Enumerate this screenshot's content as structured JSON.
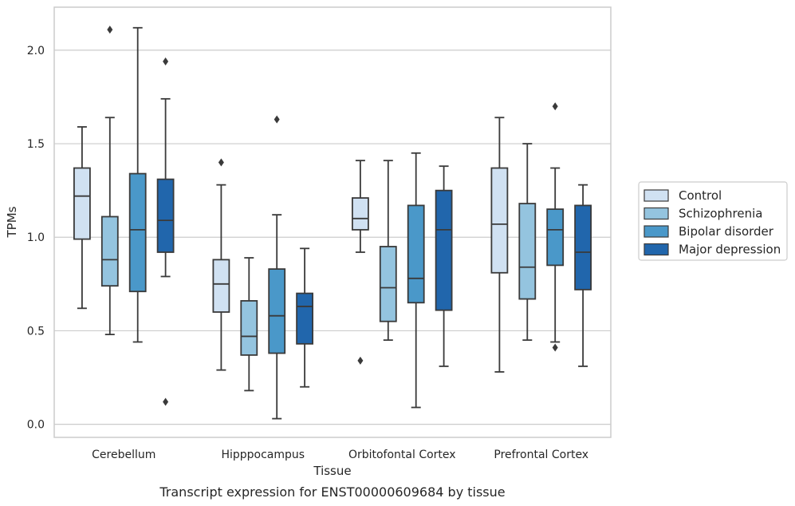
{
  "chart_data": {
    "type": "box",
    "xlabel": "Tissue",
    "ylabel": "TPMs",
    "caption": "Transcript expression for ENST00000609684 by tissue",
    "ylim": [
      -0.07,
      2.23
    ],
    "yticks": [
      "0.0",
      "0.5",
      "1.0",
      "1.5",
      "2.0"
    ],
    "ytick_values": [
      0.0,
      0.5,
      1.0,
      1.5,
      2.0
    ],
    "grid": "horizontal",
    "legend_position": "right",
    "categories": [
      "Cerebellum",
      "Hipppocampus",
      "Orbitofontal Cortex",
      "Prefrontal Cortex"
    ],
    "series": [
      {
        "name": "Control",
        "color": "#d0e1f2",
        "boxes": [
          {
            "whislo": 0.62,
            "q1": 0.99,
            "med": 1.22,
            "q3": 1.37,
            "whishi": 1.59,
            "fliers": []
          },
          {
            "whislo": 0.29,
            "q1": 0.6,
            "med": 0.75,
            "q3": 0.88,
            "whishi": 1.28,
            "fliers": [
              1.4
            ]
          },
          {
            "whislo": 0.92,
            "q1": 1.04,
            "med": 1.1,
            "q3": 1.21,
            "whishi": 1.41,
            "fliers": [
              0.34
            ]
          },
          {
            "whislo": 0.28,
            "q1": 0.81,
            "med": 1.07,
            "q3": 1.37,
            "whishi": 1.64,
            "fliers": []
          }
        ]
      },
      {
        "name": "Schizophrenia",
        "color": "#94c4df",
        "boxes": [
          {
            "whislo": 0.48,
            "q1": 0.74,
            "med": 0.88,
            "q3": 1.11,
            "whishi": 1.64,
            "fliers": [
              2.11
            ]
          },
          {
            "whislo": 0.18,
            "q1": 0.37,
            "med": 0.47,
            "q3": 0.66,
            "whishi": 0.89,
            "fliers": []
          },
          {
            "whislo": 0.45,
            "q1": 0.55,
            "med": 0.73,
            "q3": 0.95,
            "whishi": 1.41,
            "fliers": []
          },
          {
            "whislo": 0.45,
            "q1": 0.67,
            "med": 0.84,
            "q3": 1.18,
            "whishi": 1.5,
            "fliers": []
          }
        ]
      },
      {
        "name": "Bipolar disorder",
        "color": "#4a98c9",
        "boxes": [
          {
            "whislo": 0.44,
            "q1": 0.71,
            "med": 1.04,
            "q3": 1.34,
            "whishi": 2.12,
            "fliers": []
          },
          {
            "whislo": 0.03,
            "q1": 0.38,
            "med": 0.58,
            "q3": 0.83,
            "whishi": 1.12,
            "fliers": [
              1.63
            ]
          },
          {
            "whislo": 0.09,
            "q1": 0.65,
            "med": 0.78,
            "q3": 1.17,
            "whishi": 1.45,
            "fliers": []
          },
          {
            "whislo": 0.44,
            "q1": 0.85,
            "med": 1.04,
            "q3": 1.15,
            "whishi": 1.37,
            "fliers": [
              1.7,
              0.41
            ]
          }
        ]
      },
      {
        "name": "Major depression",
        "color": "#2166ac",
        "boxes": [
          {
            "whislo": 0.79,
            "q1": 0.92,
            "med": 1.09,
            "q3": 1.31,
            "whishi": 1.74,
            "fliers": [
              1.94,
              0.12
            ]
          },
          {
            "whislo": 0.2,
            "q1": 0.43,
            "med": 0.63,
            "q3": 0.7,
            "whishi": 0.94,
            "fliers": []
          },
          {
            "whislo": 0.31,
            "q1": 0.61,
            "med": 1.04,
            "q3": 1.25,
            "whishi": 1.38,
            "fliers": []
          },
          {
            "whislo": 0.31,
            "q1": 0.72,
            "med": 0.92,
            "q3": 1.17,
            "whishi": 1.28,
            "fliers": []
          }
        ]
      }
    ]
  }
}
